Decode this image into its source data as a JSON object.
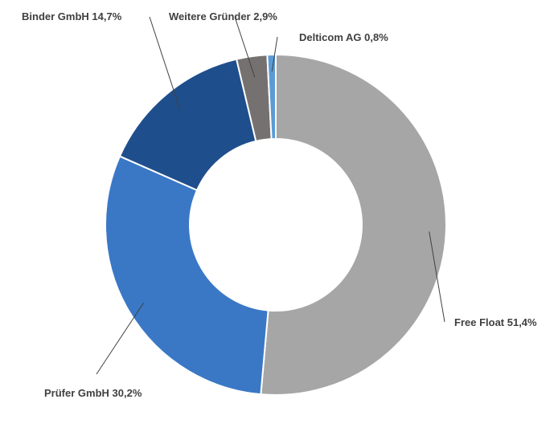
{
  "chart_data": {
    "type": "pie",
    "variant": "donut",
    "title": "",
    "slices": [
      {
        "name": "Free Float",
        "value": 51.4,
        "label": "Free Float 51,4%",
        "color": "#a6a6a6"
      },
      {
        "name": "Prüfer GmbH",
        "value": 30.2,
        "label": "Prüfer GmbH 30,2%",
        "color": "#3a78c6"
      },
      {
        "name": "Binder GmbH",
        "value": 14.7,
        "label": "Binder GmbH 14,7%",
        "color": "#1f4e8c"
      },
      {
        "name": "Weitere Gründer",
        "value": 2.9,
        "label": "Weitere Gründer 2,9%",
        "color": "#767171"
      },
      {
        "name": "Delticom AG",
        "value": 0.8,
        "label": "Delticom AG 0,8%",
        "color": "#5b9bd5"
      }
    ],
    "legend": "none",
    "start_angle": "12 o'clock",
    "direction": "clockwise"
  }
}
